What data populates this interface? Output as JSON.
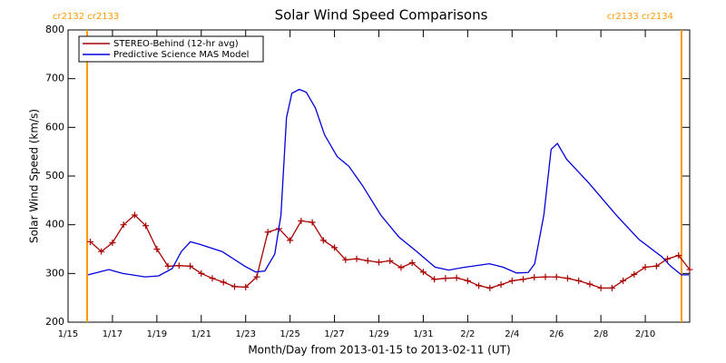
{
  "chart_data": {
    "type": "line",
    "title": "Solar Wind Speed Comparisons",
    "xlabel": "Month/Day from 2013-01-15 to 2013-02-11 (UT)",
    "ylabel": "Solar Wind Speed (km/s)",
    "xlim": [
      0,
      28
    ],
    "xticks": [
      {
        "value": 0,
        "label": "1/15"
      },
      {
        "value": 2,
        "label": "1/17"
      },
      {
        "value": 4,
        "label": "1/19"
      },
      {
        "value": 6,
        "label": "1/21"
      },
      {
        "value": 8,
        "label": "1/23"
      },
      {
        "value": 10,
        "label": "1/25"
      },
      {
        "value": 12,
        "label": "1/27"
      },
      {
        "value": 14,
        "label": "1/29"
      },
      {
        "value": 16,
        "label": "1/31"
      },
      {
        "value": 18,
        "label": "2/2"
      },
      {
        "value": 20,
        "label": "2/4"
      },
      {
        "value": 22,
        "label": "2/6"
      },
      {
        "value": 24,
        "label": "2/8"
      },
      {
        "value": 26,
        "label": "2/10"
      }
    ],
    "ylim": [
      200,
      800
    ],
    "yticks": [
      200,
      300,
      400,
      500,
      600,
      700,
      800
    ],
    "markers": [
      {
        "x": 0.86,
        "label": "cr2132 cr2133",
        "color": "#ff9900"
      },
      {
        "x": 27.63,
        "label": "cr2133 cr2134",
        "color": "#ff9900"
      }
    ],
    "legend": "upper left",
    "series": [
      {
        "name": "STEREO-Behind (12-hr avg)",
        "color": "#aa0000",
        "marker": "plus",
        "x": [
          1.0,
          1.5,
          2.0,
          2.5,
          3.0,
          3.5,
          4.0,
          4.5,
          5.0,
          5.5,
          6.0,
          6.5,
          7.0,
          7.5,
          8.0,
          8.5,
          9.0,
          9.5,
          10.0,
          10.5,
          11.0,
          11.5,
          12.0,
          12.5,
          13.0,
          13.5,
          14.0,
          14.5,
          15.0,
          15.5,
          16.0,
          16.5,
          17.0,
          17.5,
          18.0,
          18.5,
          19.0,
          19.5,
          20.0,
          20.5,
          21.0,
          21.5,
          22.0,
          22.5,
          23.0,
          23.5,
          24.0,
          24.5,
          25.0,
          25.5,
          26.0,
          26.5,
          27.0,
          27.5,
          28.0
        ],
        "values": [
          365,
          345,
          363,
          400,
          420,
          398,
          350,
          315,
          316,
          315,
          300,
          290,
          282,
          273,
          272,
          293,
          385,
          392,
          368,
          408,
          405,
          368,
          353,
          328,
          330,
          326,
          323,
          326,
          312,
          322,
          303,
          288,
          290,
          291,
          285,
          275,
          270,
          277,
          285,
          288,
          292,
          293,
          293,
          290,
          285,
          278,
          270,
          270,
          285,
          298,
          313,
          315,
          330,
          337,
          308
        ]
      },
      {
        "name": "Predictive Science MAS Model",
        "color": "#0000dd",
        "x": [
          0.9,
          1.84,
          2.45,
          3.47,
          4.08,
          4.69,
          5.1,
          5.51,
          5.92,
          6.94,
          7.96,
          8.45,
          8.86,
          9.31,
          9.59,
          9.84,
          10.08,
          10.41,
          10.73,
          11.14,
          11.55,
          12.12,
          12.65,
          13.27,
          14.08,
          14.9,
          15.71,
          16.53,
          17.14,
          17.76,
          18.98,
          19.59,
          20.2,
          20.73,
          21.02,
          21.43,
          21.76,
          22.04,
          22.45,
          23.47,
          24.69,
          25.71,
          26.73,
          27.14,
          27.63,
          27.96
        ],
        "values": [
          297,
          308,
          300,
          293,
          295,
          310,
          345,
          365,
          360,
          345,
          315,
          303,
          305,
          340,
          420,
          620,
          670,
          678,
          672,
          640,
          585,
          540,
          520,
          480,
          420,
          375,
          345,
          313,
          307,
          312,
          320,
          313,
          301,
          302,
          320,
          420,
          555,
          567,
          535,
          485,
          420,
          370,
          335,
          315,
          297,
          297
        ]
      }
    ]
  }
}
